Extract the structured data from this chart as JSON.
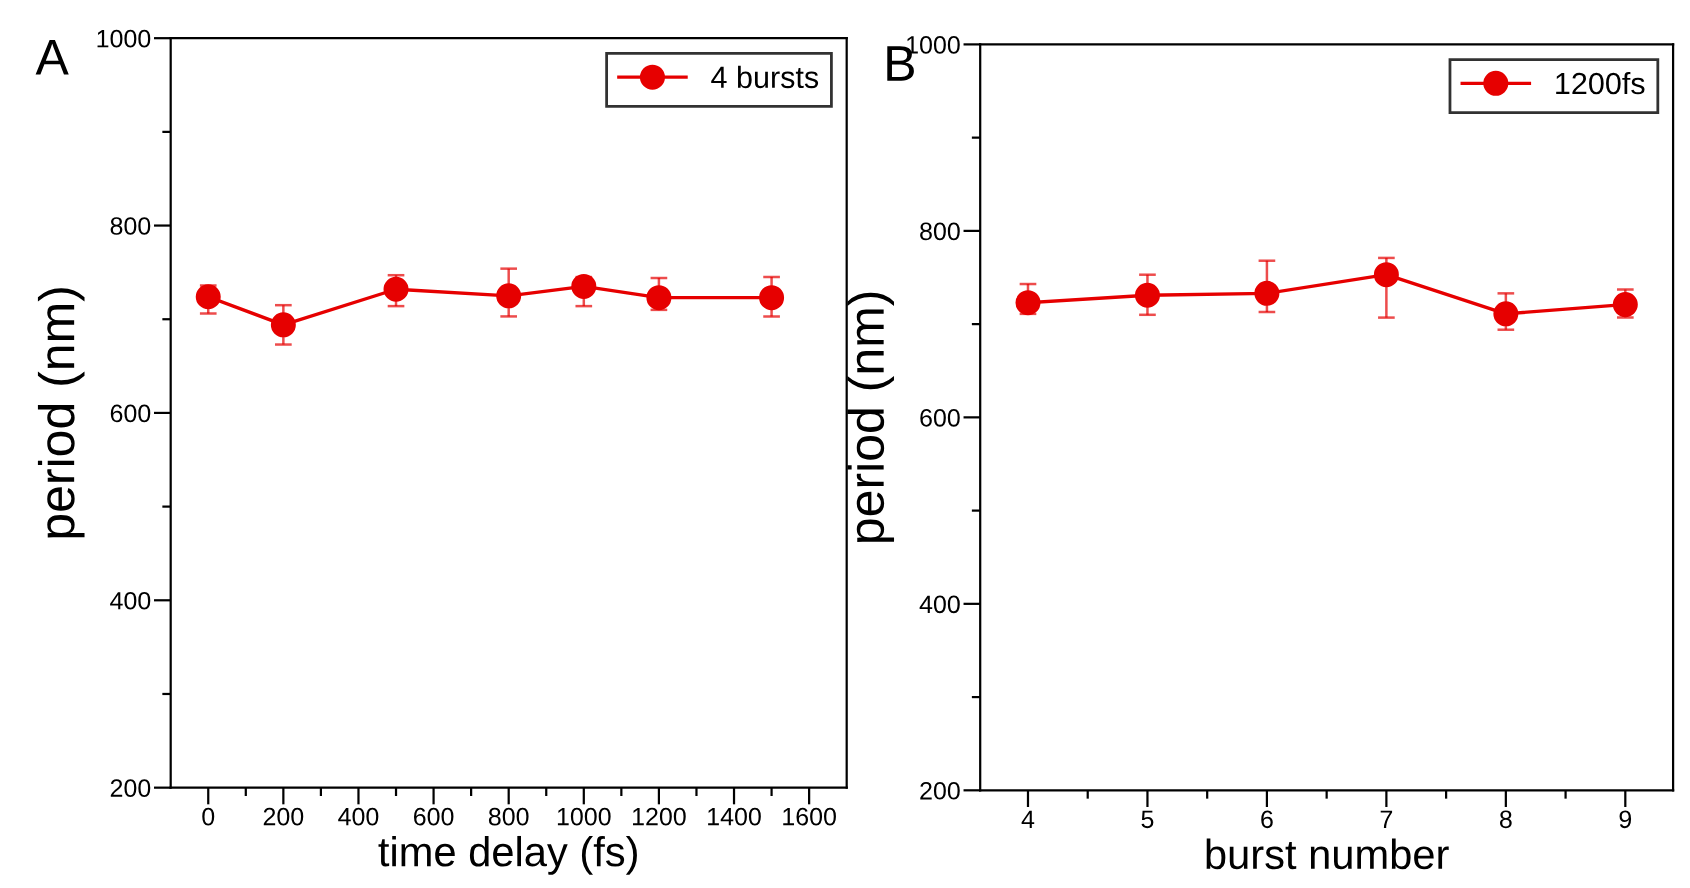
{
  "chart_data": [
    {
      "type": "line",
      "xlabel": "time delay (fs)",
      "ylabel": "period (nm)",
      "annotations": [
        "A"
      ],
      "xlim": [
        -100,
        1700
      ],
      "ylim": [
        200,
        1000
      ],
      "xticks": [
        0,
        {
          "value": 100,
          "label": null
        },
        200,
        {
          "value": 300,
          "label": null
        },
        400,
        {
          "value": 500,
          "label": null
        },
        600,
        {
          "value": 700,
          "label": null
        },
        800,
        {
          "value": 900,
          "label": null
        },
        1000,
        {
          "value": 1100,
          "label": null
        },
        1200,
        {
          "value": 1300,
          "label": null
        },
        1400,
        {
          "value": 1500,
          "label": null
        },
        1600
      ],
      "yticks": [
        200,
        {
          "value": 300,
          "label": null
        },
        400,
        {
          "value": 500,
          "label": null
        },
        600,
        {
          "value": 700,
          "label": null
        },
        800,
        {
          "value": 900,
          "label": null
        },
        1000
      ],
      "x": [
        0,
        200,
        500,
        800,
        1000,
        1200,
        1500
      ],
      "series": [
        {
          "name": "4 bursts",
          "color": "#e60000",
          "values": [
            724,
            694,
            732,
            725,
            735,
            723,
            723
          ],
          "errors": [
            [
              706,
              736
            ],
            [
              673,
              715
            ],
            [
              714,
              747
            ],
            [
              703,
              754
            ],
            [
              714,
              745
            ],
            [
              710,
              744
            ],
            [
              703,
              745
            ]
          ]
        }
      ],
      "marker": "circle",
      "line_style": "solid",
      "legend": "top right",
      "grid": false
    },
    {
      "type": "line",
      "xlabel": "burst number",
      "ylabel": "period (nm)",
      "annotations": [
        "B"
      ],
      "xlim": [
        3.6,
        9.4
      ],
      "ylim": [
        200,
        1000
      ],
      "xticks": [
        4,
        {
          "value": 4.5,
          "label": null
        },
        5,
        {
          "value": 5.5,
          "label": null
        },
        6,
        {
          "value": 6.5,
          "label": null
        },
        7,
        {
          "value": 7.5,
          "label": null
        },
        8,
        {
          "value": 8.5,
          "label": null
        },
        9
      ],
      "yticks": [
        200,
        {
          "value": 300,
          "label": null
        },
        400,
        {
          "value": 500,
          "label": null
        },
        600,
        {
          "value": 700,
          "label": null
        },
        800,
        {
          "value": 900,
          "label": null
        },
        1000
      ],
      "x": [
        4,
        5,
        6,
        7,
        8,
        9
      ],
      "series": [
        {
          "name": "1200fs",
          "color": "#e60000",
          "values": [
            723,
            731,
            733,
            753,
            711,
            721
          ],
          "errors": [
            [
              711,
              743
            ],
            [
              710,
              753
            ],
            [
              713,
              768
            ],
            [
              707,
              771
            ],
            [
              694,
              733
            ],
            [
              707,
              737
            ]
          ]
        }
      ],
      "marker": "circle",
      "line_style": "solid",
      "legend": "top right",
      "grid": false
    }
  ]
}
